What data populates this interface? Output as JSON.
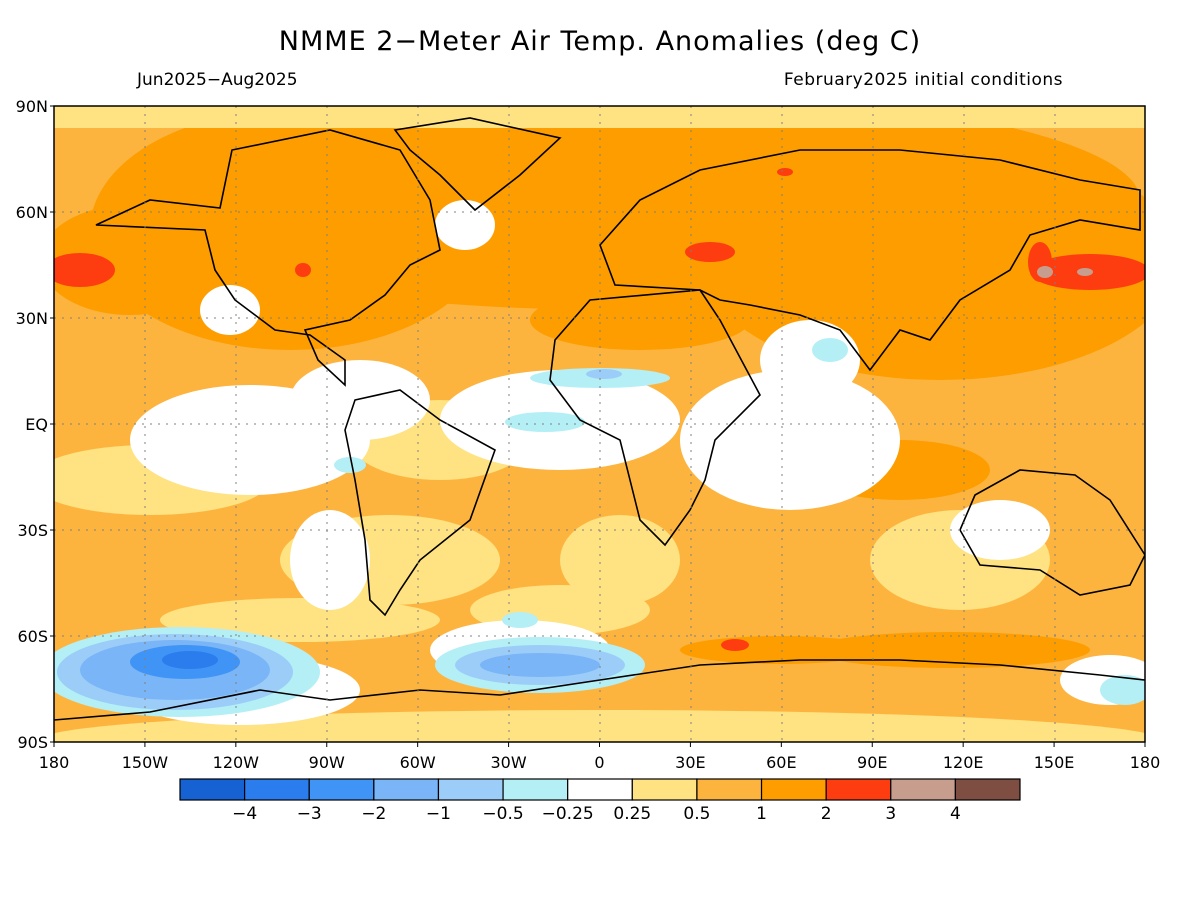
{
  "title": "NMME 2−Meter Air Temp. Anomalies (deg C)",
  "subtitle_left": "Jun2025−Aug2025",
  "subtitle_right": "February2025 initial conditions",
  "map": {
    "projection": "equirectangular",
    "lon_range": [
      -180,
      180
    ],
    "lat_range": [
      -90,
      90
    ],
    "lat_labels": [
      "90N",
      "60N",
      "30N",
      "EQ",
      "30S",
      "60S",
      "90S"
    ],
    "lon_labels": [
      "180",
      "150W",
      "120W",
      "90W",
      "60W",
      "30W",
      "0",
      "30E",
      "60E",
      "90E",
      "120E",
      "150E",
      "180"
    ],
    "grid": "dotted",
    "background_anomaly_color": "#fdb43f"
  },
  "colorbar": {
    "colors": [
      "#1762d2",
      "#2b7ded",
      "#3f94f6",
      "#79b5f7",
      "#9ccdf8",
      "#b4eff6",
      "#ffffff",
      "#ffe281",
      "#fdb43f",
      "#fd9d00",
      "#fd3c10",
      "#c79d8e",
      "#7f4e42"
    ],
    "tick_labels": [
      "−4",
      "−3",
      "−2",
      "−1",
      "−0.5",
      "−0.25",
      "0.25",
      "0.5",
      "1",
      "2",
      "3",
      "4"
    ]
  }
}
